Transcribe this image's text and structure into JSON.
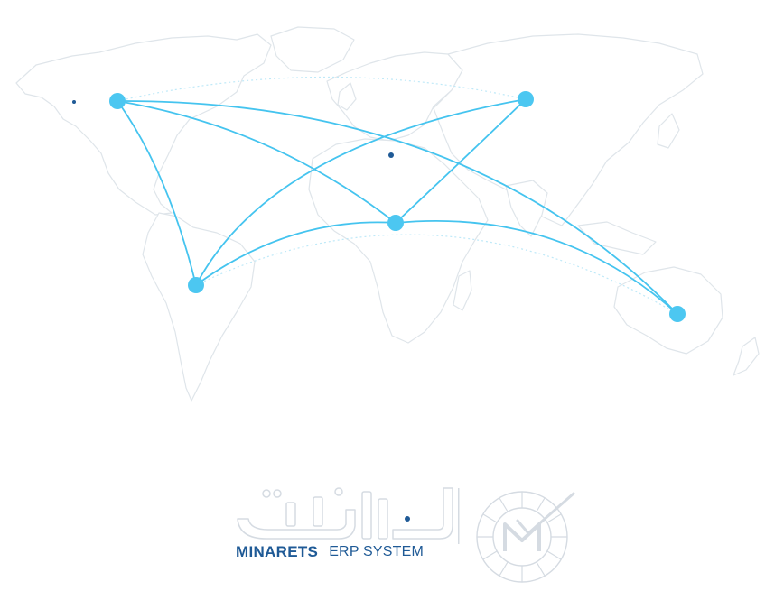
{
  "brand": {
    "name": "MINARETS",
    "subtitle": "ERP SYSTEM",
    "arabic_name": "المنارات",
    "primary_color": "#1f5a96",
    "accent_color": "#4cc7f1"
  },
  "map": {
    "land_stroke_color": "#dfe5ea",
    "route_color": "#45c4ef",
    "node_color": "#4cc7f1",
    "nodes": [
      {
        "id": "north-america"
      },
      {
        "id": "asia"
      },
      {
        "id": "africa"
      },
      {
        "id": "south-america"
      },
      {
        "id": "australia"
      }
    ]
  }
}
